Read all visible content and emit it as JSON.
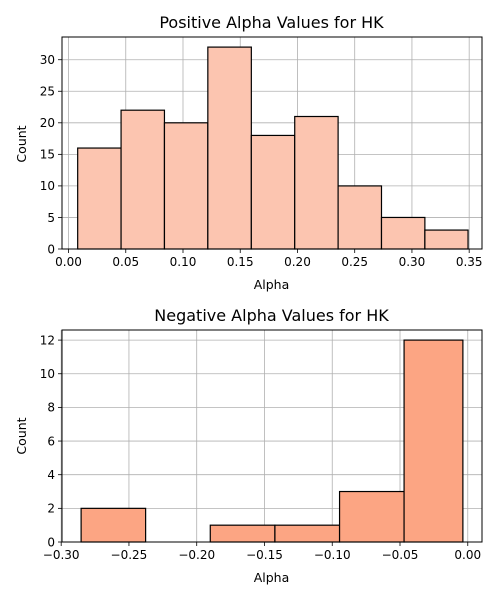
{
  "chart_data": [
    {
      "type": "bar",
      "title": "Positive Alpha Values for HK",
      "xlabel": "Alpha",
      "ylabel": "Count",
      "color": "#fcc5b0",
      "grid": true,
      "xlim": [
        -0.0057,
        0.3612
      ],
      "ylim": [
        0,
        33.6
      ],
      "xticks": [
        0.0,
        0.05,
        0.1,
        0.15,
        0.2,
        0.25,
        0.3,
        0.35
      ],
      "xtick_labels": [
        "0.00",
        "0.05",
        "0.10",
        "0.15",
        "0.20",
        "0.25",
        "0.30",
        "0.35"
      ],
      "yticks": [
        0,
        5,
        10,
        15,
        20,
        25,
        30
      ],
      "ytick_labels": [
        "0",
        "5",
        "10",
        "15",
        "20",
        "25",
        "30"
      ],
      "bins": [
        {
          "x0": 0.008,
          "x1": 0.0459,
          "count": 16
        },
        {
          "x0": 0.0459,
          "x1": 0.0838,
          "count": 22
        },
        {
          "x0": 0.0838,
          "x1": 0.1217,
          "count": 20
        },
        {
          "x0": 0.1217,
          "x1": 0.1597,
          "count": 32
        },
        {
          "x0": 0.1597,
          "x1": 0.1976,
          "count": 18
        },
        {
          "x0": 0.1976,
          "x1": 0.2355,
          "count": 21
        },
        {
          "x0": 0.2355,
          "x1": 0.2734,
          "count": 10
        },
        {
          "x0": 0.2734,
          "x1": 0.3113,
          "count": 5
        },
        {
          "x0": 0.3113,
          "x1": 0.349,
          "count": 3
        }
      ]
    },
    {
      "type": "bar",
      "title": "Negative Alpha Values for HK",
      "xlabel": "Alpha",
      "ylabel": "Count",
      "color": "#fca583",
      "grid": true,
      "xlim": [
        -0.2994,
        0.0105
      ],
      "ylim": [
        0,
        12.6
      ],
      "xticks": [
        -0.3,
        -0.25,
        -0.2,
        -0.15,
        -0.1,
        -0.05,
        0.0
      ],
      "xtick_labels": [
        "−0.30",
        "−0.25",
        "−0.20",
        "−0.15",
        "−0.10",
        "−0.05",
        "0.00"
      ],
      "yticks": [
        0,
        2,
        4,
        6,
        8,
        10,
        12
      ],
      "ytick_labels": [
        "0",
        "2",
        "4",
        "6",
        "8",
        "10",
        "12"
      ],
      "bins": [
        {
          "x0": -0.2853,
          "x1": -0.2377,
          "count": 2
        },
        {
          "x0": -0.2377,
          "x1": -0.19,
          "count": 0
        },
        {
          "x0": -0.19,
          "x1": -0.1423,
          "count": 1
        },
        {
          "x0": -0.1423,
          "x1": -0.0946,
          "count": 1
        },
        {
          "x0": -0.0946,
          "x1": -0.047,
          "count": 3
        },
        {
          "x0": -0.047,
          "x1": -0.0036,
          "count": 12
        }
      ]
    }
  ]
}
